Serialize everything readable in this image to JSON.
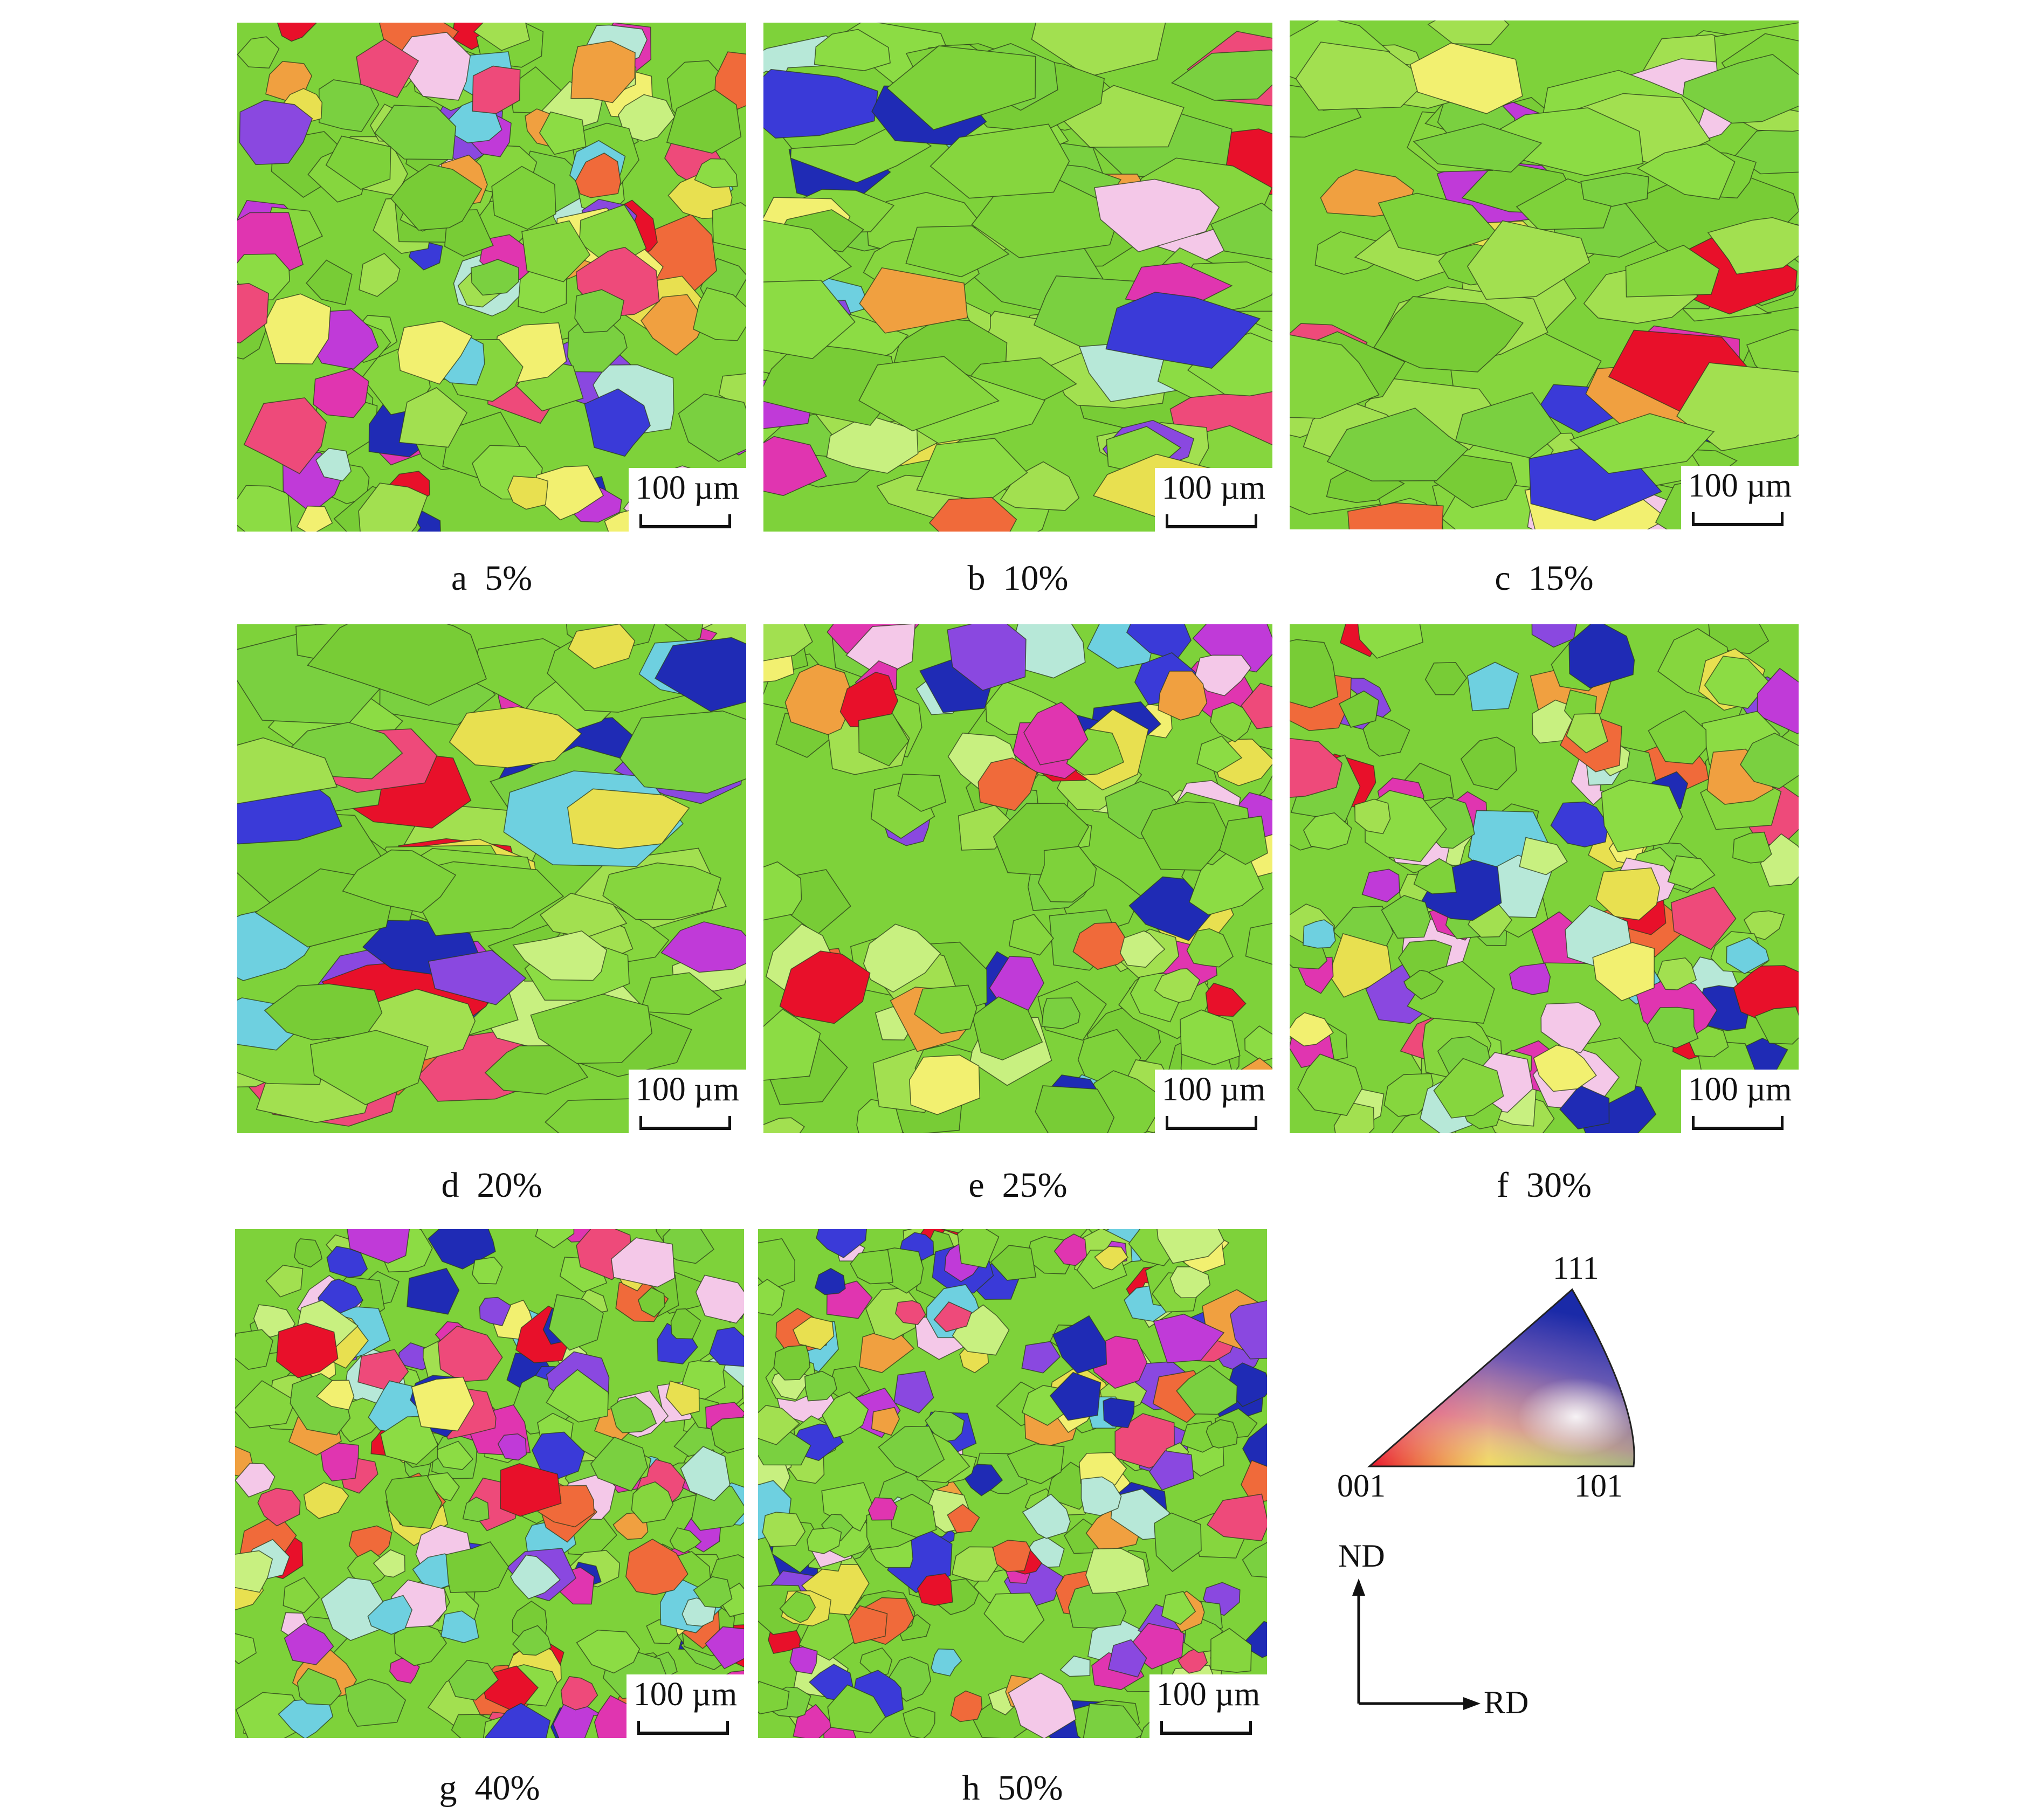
{
  "scale_label": "100 µm",
  "panels": [
    {
      "id": "a",
      "letter": "a",
      "value": "5%"
    },
    {
      "id": "b",
      "letter": "b",
      "value": "10%"
    },
    {
      "id": "c",
      "letter": "c",
      "value": "15%"
    },
    {
      "id": "d",
      "letter": "d",
      "value": "20%"
    },
    {
      "id": "e",
      "letter": "e",
      "value": "25%"
    },
    {
      "id": "f",
      "letter": "f",
      "value": "30%"
    },
    {
      "id": "g",
      "letter": "g",
      "value": "40%"
    },
    {
      "id": "h",
      "letter": "h",
      "value": "50%"
    }
  ],
  "ipf_legend": {
    "corner_001": "001",
    "corner_101": "101",
    "corner_111": "111",
    "colors": {
      "c001": "#e8102a",
      "c101": "#7ed23a",
      "c111": "#1a2aa8"
    }
  },
  "axes": {
    "vertical": "ND",
    "horizontal": "RD"
  }
}
